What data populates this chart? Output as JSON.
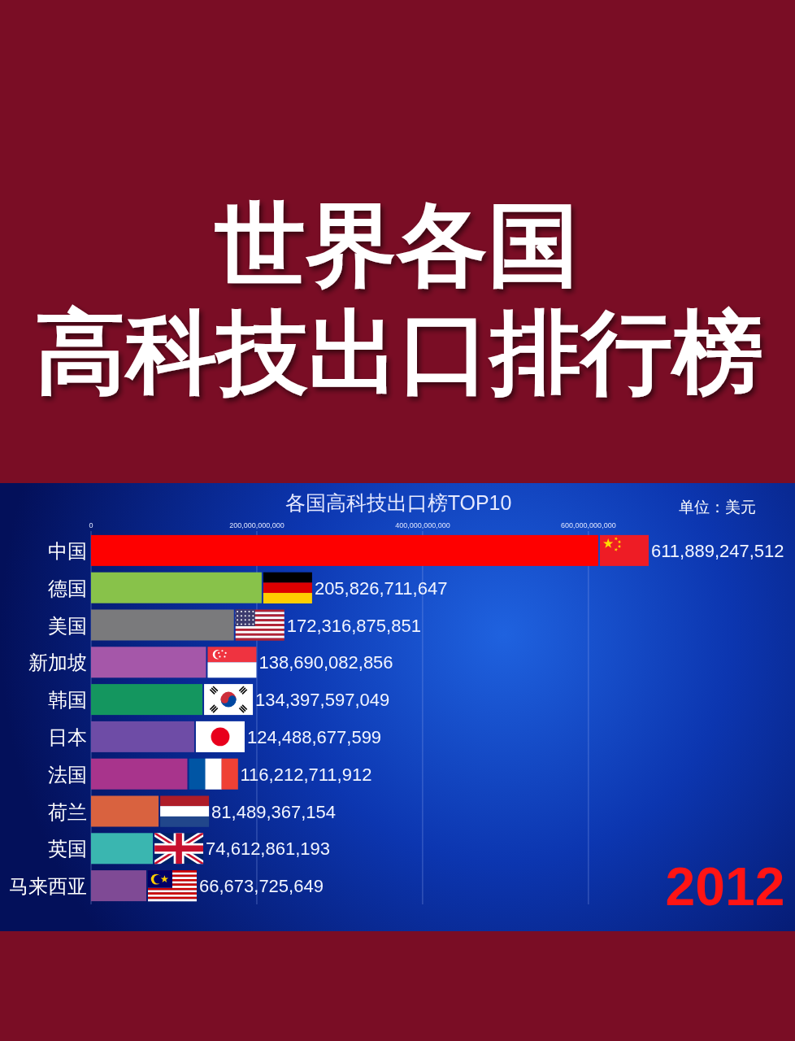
{
  "chart_data": {
    "type": "bar",
    "orientation": "horizontal",
    "title": "世界各国",
    "subtitle": "高科技出口排行榜",
    "annotations": [
      "各国高科技出口榜TOP10",
      "单位：美元",
      "2012"
    ],
    "categories": [
      "中国",
      "德国",
      "美国",
      "新加坡",
      "韩国",
      "日本",
      "法国",
      "荷兰",
      "英国",
      "马来西亚"
    ],
    "values": [
      611889247512,
      205826711647,
      172316875851,
      138690082856,
      134397597049,
      124488677599,
      116212711912,
      81489367154,
      74612861193,
      66673725649
    ],
    "value_labels": [
      "611,889,247,512",
      "205,826,711,647",
      "172,316,875,851",
      "138,690,082,856",
      "134,397,597,049",
      "124,488,677,599",
      "116,212,711,912",
      "81,489,367,154",
      "74,612,861,193",
      "66,673,725,649"
    ],
    "colors": [
      "#fe0000",
      "#88c24a",
      "#7a7a7c",
      "#a557a9",
      "#14965f",
      "#6e4ca6",
      "#a8348c",
      "#d9623f",
      "#3ab6b0",
      "#7f4a95"
    ],
    "xlim": [
      0,
      611889247512
    ],
    "xticks": [
      0,
      {
        "value": 200000000000,
        "label": "200,000,000,000"
      },
      {
        "value": 400000000000,
        "label": "400,000,000,000"
      },
      {
        "value": 600000000000,
        "label": "600,000,000,000"
      }
    ],
    "grid": "x"
  }
}
